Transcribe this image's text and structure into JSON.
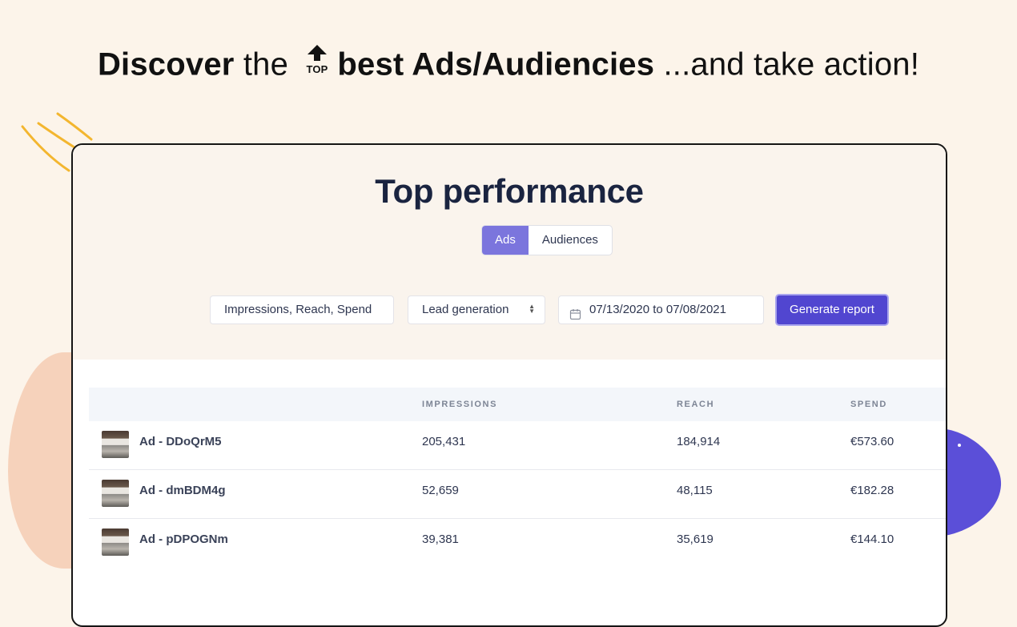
{
  "headline": {
    "part1": "Discover",
    "part2": " the ",
    "icon": "top-arrow-icon",
    "icon_text": "TOP",
    "part3": "best Ads/Audiencies",
    "part4": " ...and take action!"
  },
  "card": {
    "title": "Top performance",
    "tabs": [
      {
        "label": "Ads",
        "active": true
      },
      {
        "label": "Audiences",
        "active": false
      }
    ],
    "filters": {
      "metrics_value": "Impressions, Reach, Spend",
      "objective_value": "Lead generation",
      "date_range_value": "07/13/2020 to 07/08/2021"
    },
    "generate_label": "Generate report",
    "accent_color": "#5146d0"
  },
  "table": {
    "columns": [
      "",
      "IMPRESSIONS",
      "REACH",
      "SPEND"
    ],
    "rows": [
      {
        "name": "Ad - DDoQrM5",
        "impressions": "205,431",
        "reach": "184,914",
        "spend": "€573.60"
      },
      {
        "name": "Ad - dmBDM4g",
        "impressions": "52,659",
        "reach": "48,115",
        "spend": "€182.28"
      },
      {
        "name": "Ad - pDPOGNm",
        "impressions": "39,381",
        "reach": "35,619",
        "spend": "€144.10"
      }
    ]
  }
}
